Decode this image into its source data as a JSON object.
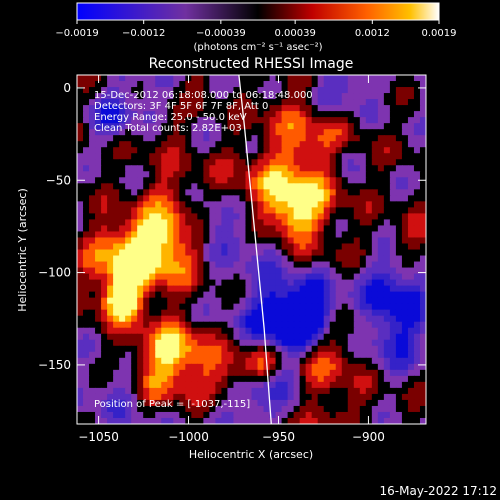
{
  "colorbar": {
    "ticks": [
      {
        "value": -0.0019,
        "label": "−0.0019"
      },
      {
        "value": -0.0012,
        "label": "−0.0012"
      },
      {
        "value": -0.00039,
        "label": "−0.00039"
      },
      {
        "value": 0.00039,
        "label": "0.00039"
      },
      {
        "value": 0.0012,
        "label": "0.0012"
      },
      {
        "value": 0.0019,
        "label": "0.0019"
      }
    ],
    "range": [
      -0.0019,
      0.0019
    ],
    "unit": "(photons cm⁻² s⁻¹ asec⁻²)"
  },
  "chart_data": {
    "type": "heatmap",
    "title": "Reconstructed RHESSI Image",
    "xlabel": "Heliocentric X (arcsec)",
    "ylabel": "Heliocentric Y (arcsec)",
    "xlim": [
      -1062,
      -868
    ],
    "ylim": [
      -182,
      7
    ],
    "xticks": [
      {
        "value": -1050,
        "label": "−1050"
      },
      {
        "value": -1000,
        "label": "−1000"
      },
      {
        "value": -950,
        "label": "−950"
      },
      {
        "value": -900,
        "label": "−900"
      }
    ],
    "yticks": [
      {
        "value": 0,
        "label": "0"
      },
      {
        "value": -50,
        "label": "−50"
      },
      {
        "value": -100,
        "label": "−100"
      },
      {
        "value": -150,
        "label": "−150"
      }
    ],
    "annotations": [
      "15-Dec-2012 06:18:08.000 to 06:18:48.000",
      "Detectors: 3F 4F 5F 6F 7F 8F, Att 0",
      "Energy Range: 25.0 - 50.0 keV",
      "Clean    Total counts: 2.82E+03"
    ],
    "peak_label": "Position of Peak = [-1037,-115]",
    "peak": [
      -1037,
      -115
    ],
    "limb_curve": [
      [
        -972,
        7
      ],
      [
        -969,
        -20
      ],
      [
        -966,
        -50
      ],
      [
        -962,
        -90
      ],
      [
        -958,
        -130
      ],
      [
        -954,
        -182
      ]
    ],
    "colormap": [
      "#0a0ad8",
      "#3522c8",
      "#5a2ec0",
      "#7e34b0",
      "#000000",
      "#7a0000",
      "#d01010",
      "#ff5a00",
      "#ffb400",
      "#ffff88"
    ]
  },
  "footer": {
    "date": "16-May-2022 17:12"
  }
}
